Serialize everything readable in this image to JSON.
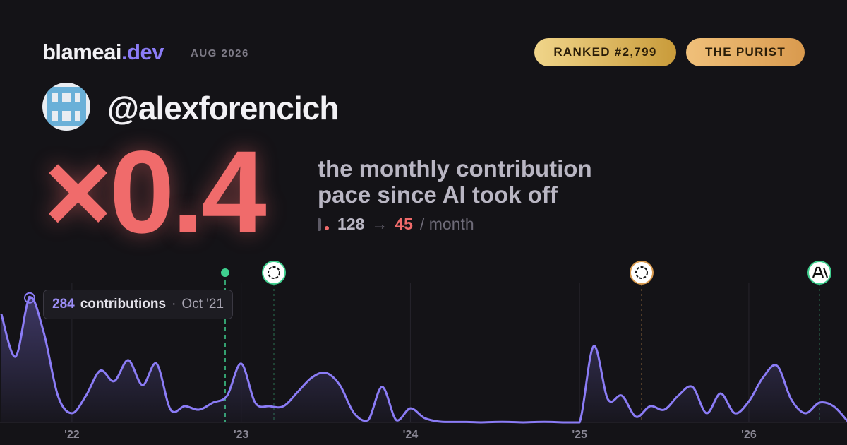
{
  "brand": {
    "name": "blameai",
    "tld": ".dev",
    "date": "AUG 2026"
  },
  "badges": [
    "RANKED #2,799",
    "THE PURIST"
  ],
  "user": {
    "handle": "@alexforencich"
  },
  "headline": {
    "multiplier": "×0.4",
    "line1": "the monthly contribution",
    "line2": "pace since AI took off",
    "before": 128,
    "arrow": "→",
    "after": 45,
    "unit": "/ month"
  },
  "chart_data": {
    "type": "line",
    "color": "#8b7cf6",
    "x": [
      2021.583,
      2021.667,
      2021.75,
      2021.833,
      2021.917,
      2022,
      2022.083,
      2022.167,
      2022.25,
      2022.333,
      2022.417,
      2022.5,
      2022.583,
      2022.667,
      2022.75,
      2022.833,
      2022.917,
      2023,
      2023.083,
      2023.167,
      2023.25,
      2023.333,
      2023.417,
      2023.5,
      2023.583,
      2023.667,
      2023.75,
      2023.833,
      2023.917,
      2024,
      2024.083,
      2024.167,
      2024.25,
      2024.333,
      2024.417,
      2024.5,
      2024.583,
      2024.667,
      2024.75,
      2024.833,
      2024.917,
      2025,
      2025.083,
      2025.167,
      2025.25,
      2025.333,
      2025.417,
      2025.5,
      2025.583,
      2025.667,
      2025.75,
      2025.833,
      2025.917,
      2026,
      2026.083,
      2026.167,
      2026.25,
      2026.333,
      2026.417,
      2026.5,
      2026.583
    ],
    "values": [
      247,
      150,
      284,
      206,
      61,
      21,
      61,
      118,
      94,
      142,
      85,
      134,
      29,
      37,
      29,
      45,
      61,
      134,
      45,
      37,
      37,
      69,
      102,
      113,
      85,
      21,
      5,
      81,
      5,
      32,
      10,
      2,
      1,
      1,
      0,
      1,
      1,
      0,
      1,
      1,
      0,
      0,
      174,
      53,
      61,
      13,
      37,
      29,
      61,
      81,
      21,
      66,
      21,
      48,
      102,
      129,
      53,
      21,
      45,
      37,
      3
    ],
    "xlim": [
      2021.575,
      2026.58
    ],
    "ylim": [
      0,
      290
    ],
    "xticks": [
      {
        "value": 2022,
        "label": "'22"
      },
      {
        "value": 2023,
        "label": "'23"
      },
      {
        "value": 2024,
        "label": "'24"
      },
      {
        "value": 2025,
        "label": "'25"
      },
      {
        "value": 2026,
        "label": "'26"
      }
    ],
    "tooltip": {
      "label": "contributions",
      "separator": "·",
      "date": "Oct '21"
    }
  }
}
